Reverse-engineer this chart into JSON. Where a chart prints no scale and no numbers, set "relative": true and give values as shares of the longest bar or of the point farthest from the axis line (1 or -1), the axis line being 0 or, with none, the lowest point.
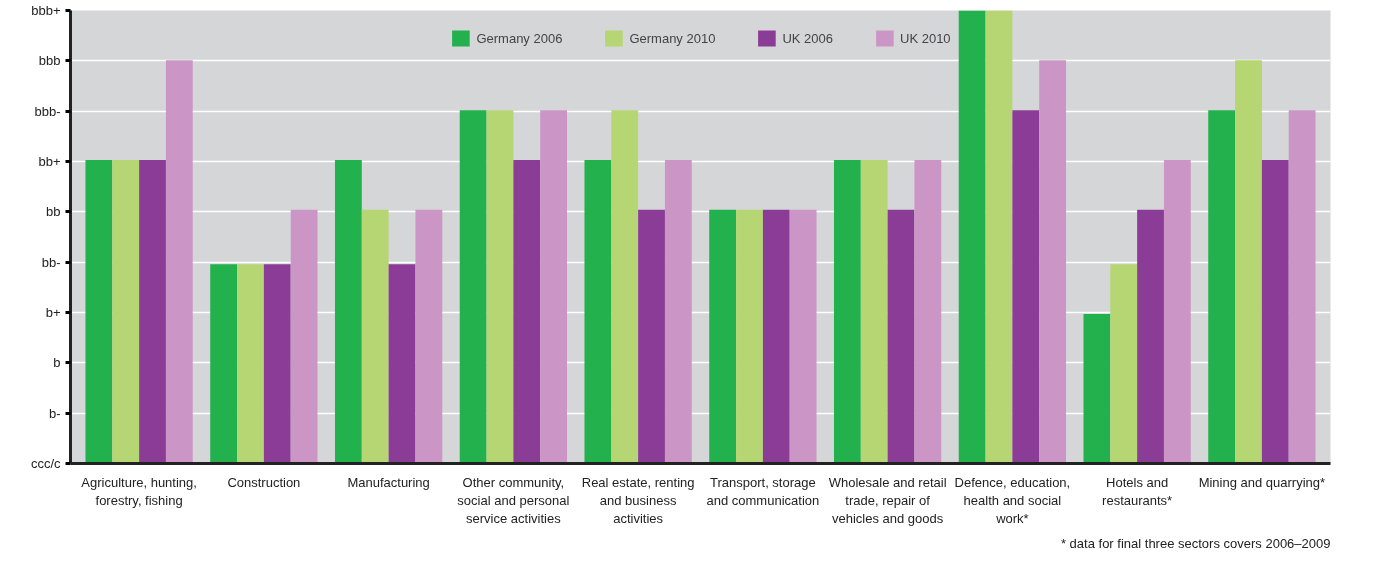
{
  "chart_data": {
    "type": "bar",
    "relative": true,
    "categories": [
      "Agriculture, hunting, forestry, fishing",
      "Construction",
      "Manufacturing",
      "Other community, social and personal service activities",
      "Real estate, renting and business activities",
      "Transport, storage and communication",
      "Wholesale and retail trade, repair of vehicles and goods",
      "Defence, education, health and social work*",
      "Hotels and restaurants*",
      "Mining and quarrying*"
    ],
    "series": [
      {
        "name": "Germany 2006",
        "color": "#22b14c",
        "values": [
          0.67,
          0.44,
          0.67,
          0.78,
          0.67,
          0.56,
          0.67,
          1,
          0.33,
          0.78
        ]
      },
      {
        "name": "Germany 2010",
        "color": "#b5d672",
        "values": [
          0.67,
          0.44,
          0.56,
          0.78,
          0.78,
          0.56,
          0.67,
          1,
          0.44,
          0.89
        ]
      },
      {
        "name": "UK 2006",
        "color": "#8b3c96",
        "values": [
          0.67,
          0.44,
          0.44,
          0.67,
          0.56,
          0.56,
          0.56,
          0.78,
          0.56,
          0.67
        ]
      },
      {
        "name": "UK 2010",
        "color": "#cb96c6",
        "values": [
          0.89,
          0.56,
          0.56,
          0.78,
          0.67,
          0.56,
          0.67,
          0.89,
          0.67,
          0.78
        ]
      }
    ],
    "grid": "y",
    "legend": "top",
    "annotations": [
      "ccc/c",
      "b-",
      "b",
      "b+",
      "bb-",
      "bb",
      "bb+",
      "bbb-",
      "bbb",
      "bbb+",
      "* data for final three sectors covers 2006–2009"
    ]
  }
}
